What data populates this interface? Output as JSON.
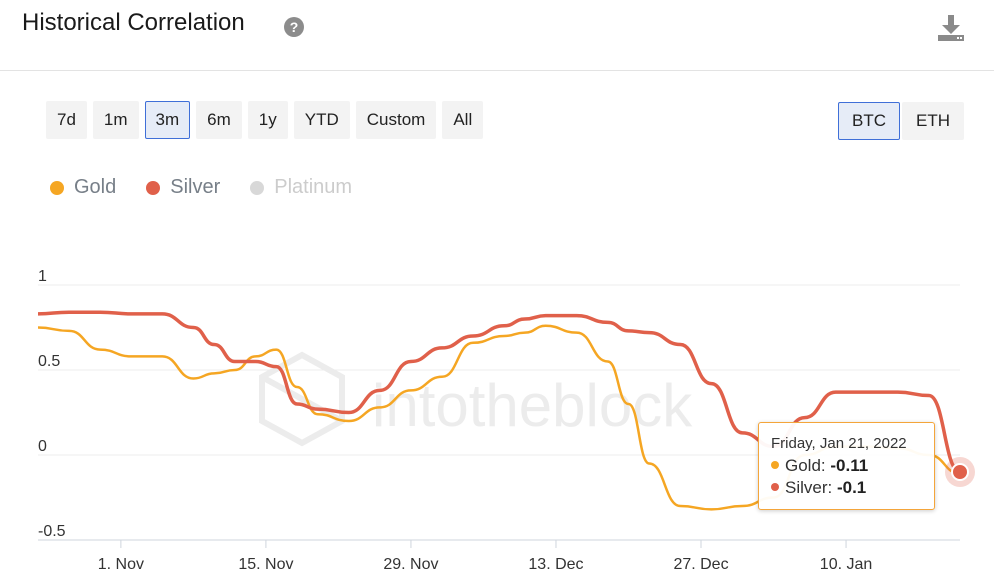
{
  "header": {
    "title": "Historical Correlation",
    "help_icon": "question-circle-icon",
    "download_icon": "download-icon"
  },
  "ranges": [
    {
      "label": "7d",
      "active": false
    },
    {
      "label": "1m",
      "active": false
    },
    {
      "label": "3m",
      "active": true
    },
    {
      "label": "6m",
      "active": false
    },
    {
      "label": "1y",
      "active": false
    },
    {
      "label": "YTD",
      "active": false
    },
    {
      "label": "Custom",
      "active": false
    },
    {
      "label": "All",
      "active": false
    }
  ],
  "assets": [
    {
      "label": "BTC",
      "active": true
    },
    {
      "label": "ETH",
      "active": false
    }
  ],
  "legend": [
    {
      "label": "Gold",
      "color": "#f5a623",
      "enabled": true
    },
    {
      "label": "Silver",
      "color": "#e0604a",
      "enabled": true
    },
    {
      "label": "Platinum",
      "color": "#cfcfcf",
      "enabled": false
    }
  ],
  "watermark": "intotheblock",
  "tooltip": {
    "date": "Friday, Jan 21, 2022",
    "rows": [
      {
        "label": "Gold: ",
        "value": "-0.11",
        "color": "#f5a623"
      },
      {
        "label": "Silver: ",
        "value": "-0.1",
        "color": "#e0604a"
      }
    ]
  },
  "chart_data": {
    "type": "line",
    "x_start": "2021-10-24",
    "x_end": "2022-01-21",
    "xticks": [
      "1. Nov",
      "15. Nov",
      "29. Nov",
      "13. Dec",
      "27. Dec",
      "10. Jan"
    ],
    "yticks": [
      "1",
      "0.5",
      "0",
      "-0.5"
    ],
    "ylim": [
      -0.5,
      1
    ],
    "grid": true,
    "legend_position": "top-left",
    "series": [
      {
        "name": "Gold",
        "color": "#f5a623",
        "x": [
          "2021-10-24",
          "2021-10-27",
          "2021-10-30",
          "2021-11-02",
          "2021-11-05",
          "2021-11-08",
          "2021-11-10",
          "2021-11-12",
          "2021-11-14",
          "2021-11-16",
          "2021-11-18",
          "2021-11-20",
          "2021-11-23",
          "2021-11-26",
          "2021-11-29",
          "2021-12-02",
          "2021-12-05",
          "2021-12-08",
          "2021-12-10",
          "2021-12-12",
          "2021-12-15",
          "2021-12-18",
          "2021-12-20",
          "2021-12-22",
          "2021-12-25",
          "2021-12-28",
          "2021-12-31",
          "2022-01-03",
          "2022-01-06",
          "2022-01-09",
          "2022-01-12",
          "2022-01-15",
          "2022-01-18",
          "2022-01-21"
        ],
        "y": [
          0.75,
          0.73,
          0.62,
          0.58,
          0.58,
          0.45,
          0.48,
          0.5,
          0.58,
          0.62,
          0.4,
          0.24,
          0.2,
          0.28,
          0.38,
          0.46,
          0.66,
          0.7,
          0.72,
          0.76,
          0.72,
          0.55,
          0.3,
          -0.05,
          -0.3,
          -0.32,
          -0.3,
          -0.25,
          0.0,
          0.05,
          0.05,
          0.04,
          0.0,
          -0.11
        ]
      },
      {
        "name": "Silver",
        "color": "#e0604a",
        "x": [
          "2021-10-24",
          "2021-10-27",
          "2021-10-30",
          "2021-11-02",
          "2021-11-05",
          "2021-11-08",
          "2021-11-10",
          "2021-11-12",
          "2021-11-14",
          "2021-11-16",
          "2021-11-18",
          "2021-11-20",
          "2021-11-23",
          "2021-11-26",
          "2021-11-29",
          "2021-12-02",
          "2021-12-05",
          "2021-12-08",
          "2021-12-10",
          "2021-12-12",
          "2021-12-15",
          "2021-12-18",
          "2021-12-20",
          "2021-12-22",
          "2021-12-25",
          "2021-12-28",
          "2021-12-31",
          "2022-01-03",
          "2022-01-06",
          "2022-01-09",
          "2022-01-12",
          "2022-01-15",
          "2022-01-18",
          "2022-01-21"
        ],
        "y": [
          0.83,
          0.84,
          0.84,
          0.83,
          0.83,
          0.75,
          0.65,
          0.55,
          0.55,
          0.52,
          0.3,
          0.27,
          0.25,
          0.38,
          0.55,
          0.63,
          0.7,
          0.76,
          0.8,
          0.82,
          0.82,
          0.78,
          0.73,
          0.72,
          0.65,
          0.42,
          0.13,
          0.05,
          0.22,
          0.37,
          0.37,
          0.37,
          0.35,
          -0.1
        ]
      }
    ]
  }
}
